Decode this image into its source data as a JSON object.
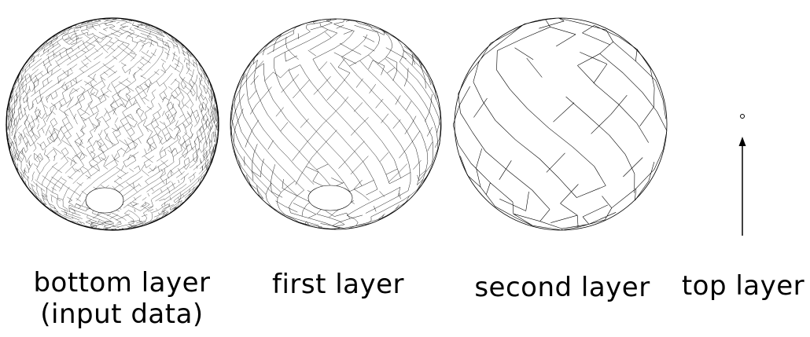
{
  "figure": {
    "description_layers": [
      {
        "id": "bottom",
        "label_line1": "bottom layer",
        "label_line2": "(input data)",
        "mesh_density": 60
      },
      {
        "id": "first",
        "label_line1": "first layer",
        "label_line2": "",
        "mesh_density": 28
      },
      {
        "id": "second",
        "label_line1": "second layer",
        "label_line2": "",
        "mesh_density": 12
      },
      {
        "id": "top",
        "label_line1": "top layer",
        "label_line2": "",
        "mesh_density": 0
      }
    ],
    "colors": {
      "line": "#000000",
      "background": "#ffffff"
    }
  }
}
